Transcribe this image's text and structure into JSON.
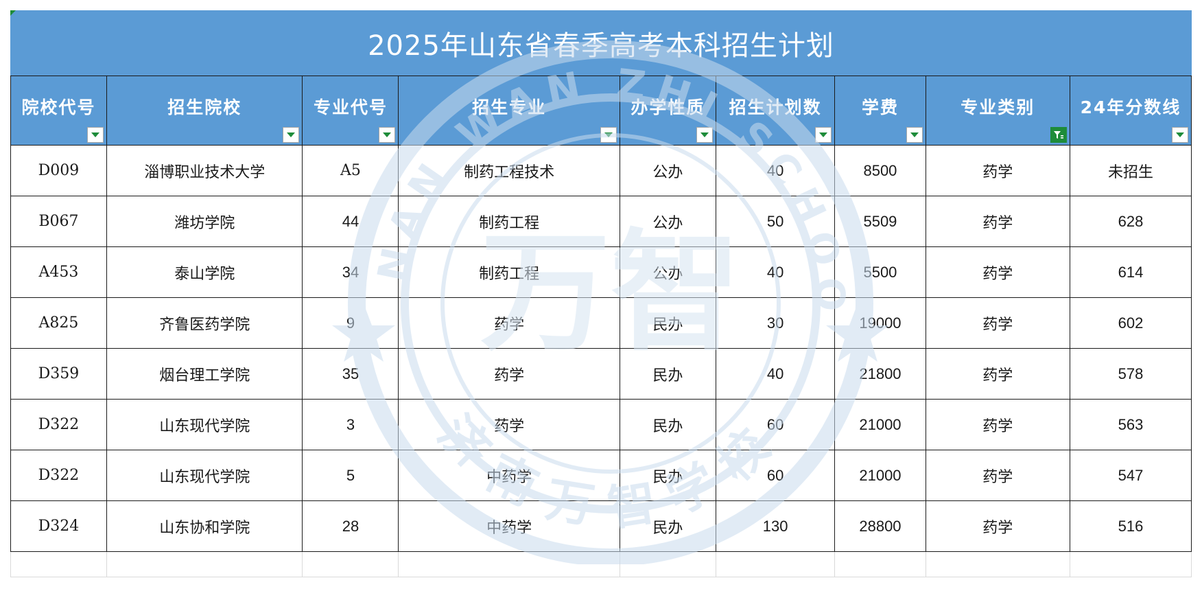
{
  "title": "2025年山东省春季高考本科招生计划",
  "headers": [
    "院校代号",
    "招生院校",
    "专业代号",
    "招生专业",
    "办学性质",
    "招生计划数",
    "学费",
    "专业类别",
    "24年分数线"
  ],
  "filter_active_column": 7,
  "rows": [
    {
      "code": "D009",
      "school": "淄博职业技术大学",
      "major_code": "A5",
      "major": "制药工程技术",
      "nature": "公办",
      "plan": "40",
      "fee": "8500",
      "category": "药学",
      "score": "未招生"
    },
    {
      "code": "B067",
      "school": "潍坊学院",
      "major_code": "44",
      "major": "制药工程",
      "nature": "公办",
      "plan": "50",
      "fee": "5509",
      "category": "药学",
      "score": "628"
    },
    {
      "code": "A453",
      "school": "泰山学院",
      "major_code": "34",
      "major": "制药工程",
      "nature": "公办",
      "plan": "40",
      "fee": "5500",
      "category": "药学",
      "score": "614"
    },
    {
      "code": "A825",
      "school": "齐鲁医药学院",
      "major_code": "9",
      "major": "药学",
      "nature": "民办",
      "plan": "30",
      "fee": "19000",
      "category": "药学",
      "score": "602"
    },
    {
      "code": "D359",
      "school": "烟台理工学院",
      "major_code": "35",
      "major": "药学",
      "nature": "民办",
      "plan": "40",
      "fee": "21800",
      "category": "药学",
      "score": "578"
    },
    {
      "code": "D322",
      "school": "山东现代学院",
      "major_code": "3",
      "major": "药学",
      "nature": "民办",
      "plan": "60",
      "fee": "21000",
      "category": "药学",
      "score": "563"
    },
    {
      "code": "D322",
      "school": "山东现代学院",
      "major_code": "5",
      "major": "中药学",
      "nature": "民办",
      "plan": "60",
      "fee": "21000",
      "category": "药学",
      "score": "547"
    },
    {
      "code": "D324",
      "school": "山东协和学院",
      "major_code": "28",
      "major": "中药学",
      "nature": "民办",
      "plan": "130",
      "fee": "28800",
      "category": "药学",
      "score": "516"
    }
  ],
  "watermark": {
    "ring_text": "JI NAN WAN ZHI SCHOOL",
    "bottom_text": "济南万智学校",
    "center_text": "万智"
  },
  "colors": {
    "header_bg": "#5b9bd5",
    "header_text": "#ffffff",
    "filter_green": "#1e8c3a",
    "grid_line": "#1a1a1a"
  }
}
